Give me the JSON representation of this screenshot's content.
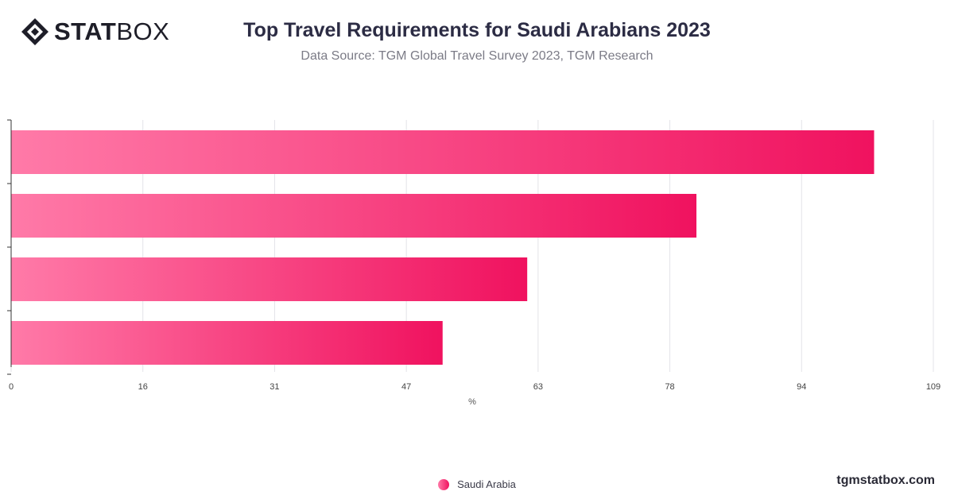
{
  "logo": {
    "text_bold": "STAT",
    "text_light": "BOX",
    "icon": "diamond-logo-icon"
  },
  "header": {
    "title": "Top Travel Requirements for Saudi Arabians 2023",
    "subtitle": "Data Source: TGM Global Travel Survey 2023, TGM Research"
  },
  "colors": {
    "bar_start": "#ff7aa8",
    "bar_end": "#f0125f",
    "grid": "#e3e3e8",
    "axis": "#333333"
  },
  "chart_data": {
    "type": "bar",
    "orientation": "horizontal",
    "categories": [
      "",
      "",
      "",
      ""
    ],
    "series": [
      {
        "name": "Saudi Arabia",
        "values": [
          102,
          81,
          61,
          51
        ]
      }
    ],
    "xlabel": "%",
    "xlim": [
      0,
      109
    ],
    "xticks": [
      "0",
      "16",
      "31",
      "47",
      "63",
      "78",
      "94",
      "109"
    ],
    "grid": true,
    "legend": "bottom-center"
  },
  "footer": {
    "credit": "tgmstatbox.com"
  }
}
